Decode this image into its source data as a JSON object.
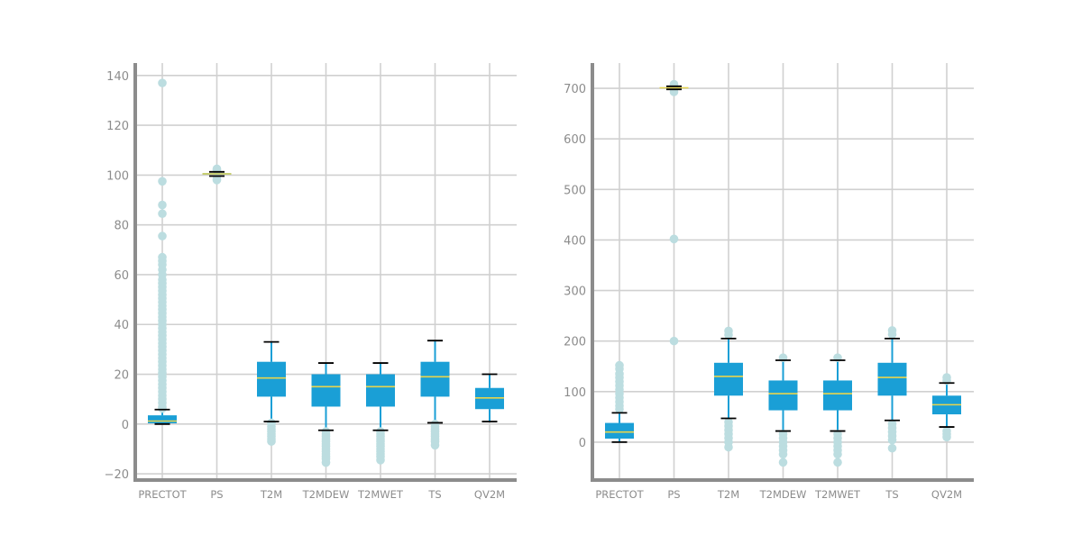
{
  "colors": {
    "box_fill": "#1a9fd6",
    "median": "#e8d44d",
    "whisker": "#1a9fd6",
    "cap": "#000000",
    "outlier": "#bcdde0",
    "grid": "#d0d0d0",
    "spine": "#8c8c8c",
    "tick_text": "#8c8c8c"
  },
  "chart_data": [
    {
      "type": "box",
      "categories": [
        "PRECTOT",
        "PS",
        "T2M",
        "T2MDEW",
        "T2MWET",
        "TS",
        "QV2M"
      ],
      "ylim": [
        -22.5,
        145
      ],
      "yticks": [
        -20,
        0,
        20,
        40,
        60,
        80,
        100,
        120,
        140
      ],
      "ytick_labels": [
        "−20",
        "0",
        "20",
        "40",
        "60",
        "80",
        "100",
        "120",
        "140"
      ],
      "grid": true,
      "boxes": [
        {
          "name": "PRECTOT",
          "whislo": 0,
          "q1": 0.3,
          "med": 1.2,
          "q3": 3.5,
          "whishi": 5.8,
          "outliers": [
            137,
            97.5,
            88,
            84.5,
            75.5,
            67,
            65.5,
            64,
            62,
            60,
            58,
            56.5,
            55,
            53.5,
            52,
            50.5,
            49,
            47.5,
            46,
            44.5,
            43,
            41.5,
            40,
            38.5,
            37,
            35.5,
            34,
            32.5,
            31,
            29.5,
            28,
            26.5,
            25,
            23.5,
            22,
            20.5,
            19,
            17.5,
            16,
            14.5,
            13,
            11.5,
            10,
            8.5,
            7,
            6.2
          ]
        },
        {
          "name": "PS",
          "whislo": 99.6,
          "q1": 100.2,
          "med": 100.5,
          "q3": 100.8,
          "whishi": 101.3,
          "outliers": [
            102.5,
            102,
            98.5,
            98
          ]
        },
        {
          "name": "T2M",
          "whislo": 1,
          "q1": 11,
          "med": 18.5,
          "q3": 25,
          "whishi": 33,
          "outliers": [
            0.5,
            0,
            -1,
            -2,
            -3,
            -4,
            -5,
            -6,
            -7
          ]
        },
        {
          "name": "T2MDEW",
          "whislo": -2.5,
          "q1": 7,
          "med": 15,
          "q3": 20,
          "whishi": 24.5,
          "outliers": [
            -3,
            -4,
            -5,
            -6,
            -7,
            -8,
            -9,
            -10,
            -11,
            -12,
            -13,
            -14,
            -15.5
          ]
        },
        {
          "name": "T2MWET",
          "whislo": -2.5,
          "q1": 7,
          "med": 15,
          "q3": 20,
          "whishi": 24.5,
          "outliers": [
            -3,
            -4,
            -5,
            -6,
            -7,
            -8,
            -9,
            -10,
            -11,
            -12,
            -13,
            -14.5
          ]
        },
        {
          "name": "TS",
          "whislo": 0.5,
          "q1": 11,
          "med": 19,
          "q3": 25,
          "whishi": 33.5,
          "outliers": [
            0,
            -1,
            -2,
            -3,
            -4,
            -5,
            -6,
            -7,
            -8.5
          ]
        },
        {
          "name": "QV2M",
          "whislo": 1,
          "q1": 6,
          "med": 10.5,
          "q3": 14.5,
          "whishi": 20,
          "outliers": []
        }
      ]
    },
    {
      "type": "box",
      "categories": [
        "PRECTOT",
        "PS",
        "T2M",
        "T2MDEW",
        "T2MWET",
        "TS",
        "QV2M"
      ],
      "ylim": [
        -75,
        750
      ],
      "yticks": [
        0,
        100,
        200,
        300,
        400,
        500,
        600,
        700
      ],
      "ytick_labels": [
        "0",
        "100",
        "200",
        "300",
        "400",
        "500",
        "600",
        "700"
      ],
      "grid": true,
      "boxes": [
        {
          "name": "PRECTOT",
          "whislo": 0,
          "q1": 7,
          "med": 20,
          "q3": 38,
          "whishi": 58,
          "outliers": [
            152,
            145,
            135,
            128,
            120,
            112,
            104,
            96,
            88,
            80,
            72,
            65
          ]
        },
        {
          "name": "PS",
          "whislo": 698,
          "q1": 700,
          "med": 701,
          "q3": 702,
          "whishi": 704,
          "outliers": [
            708,
            704,
            698,
            693,
            402,
            200
          ]
        },
        {
          "name": "T2M",
          "whislo": 47,
          "q1": 92,
          "med": 130,
          "q3": 157,
          "whishi": 205,
          "outliers": [
            220,
            212,
            40,
            32,
            24,
            16,
            8,
            0,
            -10
          ]
        },
        {
          "name": "T2MDEW",
          "whislo": 22,
          "q1": 63,
          "med": 96,
          "q3": 122,
          "whishi": 162,
          "outliers": [
            167,
            16,
            8,
            0,
            -8,
            -16,
            -24,
            -40
          ]
        },
        {
          "name": "T2MWET",
          "whislo": 22,
          "q1": 63,
          "med": 96,
          "q3": 122,
          "whishi": 162,
          "outliers": [
            167,
            16,
            8,
            0,
            -8,
            -16,
            -24,
            -40
          ]
        },
        {
          "name": "TS",
          "whislo": 43,
          "q1": 92,
          "med": 128,
          "q3": 157,
          "whishi": 205,
          "outliers": [
            221,
            213,
            36,
            28,
            20,
            12,
            4,
            -12
          ]
        },
        {
          "name": "QV2M",
          "whislo": 30,
          "q1": 55,
          "med": 74,
          "q3": 92,
          "whishi": 117,
          "outliers": [
            128,
            122,
            22,
            16,
            10
          ]
        }
      ]
    }
  ]
}
